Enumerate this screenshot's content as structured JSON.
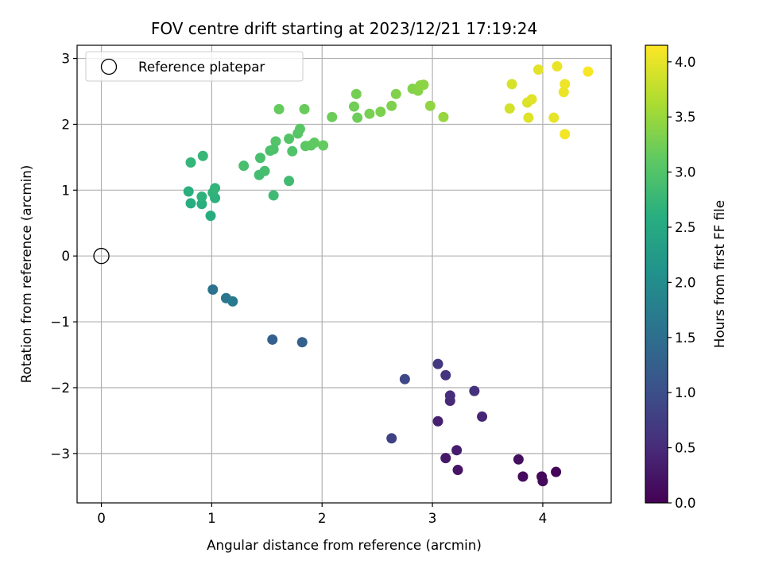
{
  "chart_data": {
    "type": "scatter",
    "title": "FOV centre drift starting at 2023/12/21 17:19:24",
    "xlabel": "Angular distance from reference (arcmin)",
    "ylabel": "Rotation from reference (arcmin)",
    "xlim": [
      -0.22,
      4.62
    ],
    "ylim": [
      -3.75,
      3.2
    ],
    "xticks": [
      0,
      1,
      2,
      3,
      4
    ],
    "xtick_labels": [
      "0",
      "1",
      "2",
      "3",
      "4"
    ],
    "yticks": [
      -3,
      -2,
      -1,
      0,
      1,
      2,
      3
    ],
    "ytick_labels": [
      "−3",
      "−2",
      "−1",
      "0",
      "1",
      "2",
      "3"
    ],
    "grid": true,
    "legend": {
      "location": "upper-left",
      "entries": [
        "Reference platepar"
      ]
    },
    "colorbar": {
      "label": "Hours from first FF file",
      "colormap": "viridis",
      "range": [
        0.0,
        4.15
      ],
      "ticks": [
        0.0,
        0.5,
        1.0,
        1.5,
        2.0,
        2.5,
        3.0,
        3.5,
        4.0
      ],
      "tick_labels": [
        "0.0",
        "0.5",
        "1.0",
        "1.5",
        "2.0",
        "2.5",
        "3.0",
        "3.5",
        "4.0"
      ]
    },
    "reference_point": {
      "name": "Reference platepar",
      "x": 0,
      "y": 0
    },
    "series": [
      {
        "points": [
          [
            4.12,
            -3.28,
            0.05
          ],
          [
            3.99,
            -3.35,
            0.07
          ],
          [
            4.0,
            -3.42,
            0.09
          ],
          [
            3.82,
            -3.35,
            0.12
          ],
          [
            3.78,
            -3.09,
            0.16
          ],
          [
            3.23,
            -3.25,
            0.22
          ],
          [
            3.12,
            -3.07,
            0.27
          ],
          [
            3.22,
            -2.95,
            0.32
          ],
          [
            3.05,
            -2.51,
            0.38
          ],
          [
            3.45,
            -2.44,
            0.42
          ],
          [
            3.16,
            -2.2,
            0.47
          ],
          [
            3.16,
            -2.12,
            0.52
          ],
          [
            3.38,
            -2.05,
            0.57
          ],
          [
            3.12,
            -1.81,
            0.62
          ],
          [
            3.05,
            -1.64,
            0.67
          ],
          [
            2.63,
            -2.77,
            0.8
          ],
          [
            2.75,
            -1.87,
            0.88
          ],
          [
            1.55,
            -1.27,
            1.25
          ],
          [
            1.82,
            -1.31,
            1.28
          ],
          [
            1.01,
            -0.51,
            1.55
          ],
          [
            1.13,
            -0.64,
            1.62
          ],
          [
            1.19,
            -0.69,
            1.68
          ],
          [
            0.99,
            0.61,
            2.55
          ],
          [
            0.81,
            0.8,
            2.58
          ],
          [
            0.91,
            0.79,
            2.6
          ],
          [
            0.79,
            0.98,
            2.62
          ],
          [
            1.03,
            0.88,
            2.64
          ],
          [
            0.91,
            0.9,
            2.66
          ],
          [
            1.01,
            0.96,
            2.68
          ],
          [
            1.03,
            1.03,
            2.7
          ],
          [
            0.81,
            1.42,
            2.72
          ],
          [
            0.92,
            1.52,
            2.74
          ],
          [
            1.56,
            0.92,
            2.82
          ],
          [
            1.7,
            1.14,
            2.84
          ],
          [
            1.43,
            1.23,
            2.86
          ],
          [
            1.48,
            1.29,
            2.88
          ],
          [
            1.29,
            1.37,
            2.9
          ],
          [
            1.44,
            1.49,
            2.92
          ],
          [
            1.53,
            1.6,
            2.94
          ],
          [
            1.56,
            1.62,
            2.96
          ],
          [
            1.73,
            1.59,
            2.98
          ],
          [
            1.58,
            1.74,
            3.0
          ],
          [
            1.7,
            1.78,
            3.02
          ],
          [
            1.78,
            1.86,
            3.04
          ],
          [
            1.8,
            1.93,
            3.06
          ],
          [
            1.85,
            1.67,
            3.08
          ],
          [
            1.9,
            1.68,
            3.1
          ],
          [
            1.93,
            1.72,
            3.12
          ],
          [
            2.01,
            1.68,
            3.14
          ],
          [
            1.61,
            2.23,
            3.16
          ],
          [
            1.84,
            2.23,
            3.18
          ],
          [
            2.09,
            2.11,
            3.2
          ],
          [
            2.32,
            2.1,
            3.22
          ],
          [
            2.29,
            2.27,
            3.24
          ],
          [
            2.31,
            2.46,
            3.26
          ],
          [
            2.43,
            2.16,
            3.28
          ],
          [
            2.53,
            2.19,
            3.3
          ],
          [
            2.63,
            2.28,
            3.32
          ],
          [
            2.67,
            2.46,
            3.34
          ],
          [
            2.82,
            2.54,
            3.36
          ],
          [
            2.87,
            2.51,
            3.38
          ],
          [
            2.89,
            2.59,
            3.4
          ],
          [
            2.92,
            2.6,
            3.42
          ],
          [
            2.98,
            2.28,
            3.44
          ],
          [
            3.1,
            2.11,
            3.48
          ],
          [
            3.7,
            2.24,
            3.88
          ],
          [
            3.72,
            2.61,
            3.9
          ],
          [
            3.86,
            2.33,
            3.92
          ],
          [
            3.87,
            2.1,
            3.94
          ],
          [
            3.9,
            2.38,
            3.96
          ],
          [
            3.96,
            2.83,
            3.98
          ],
          [
            4.1,
            2.1,
            4.0
          ],
          [
            4.13,
            2.88,
            4.02
          ],
          [
            4.19,
            2.49,
            4.04
          ],
          [
            4.2,
            2.61,
            4.06
          ],
          [
            4.2,
            1.85,
            4.08
          ],
          [
            4.41,
            2.8,
            4.12
          ]
        ]
      }
    ]
  }
}
